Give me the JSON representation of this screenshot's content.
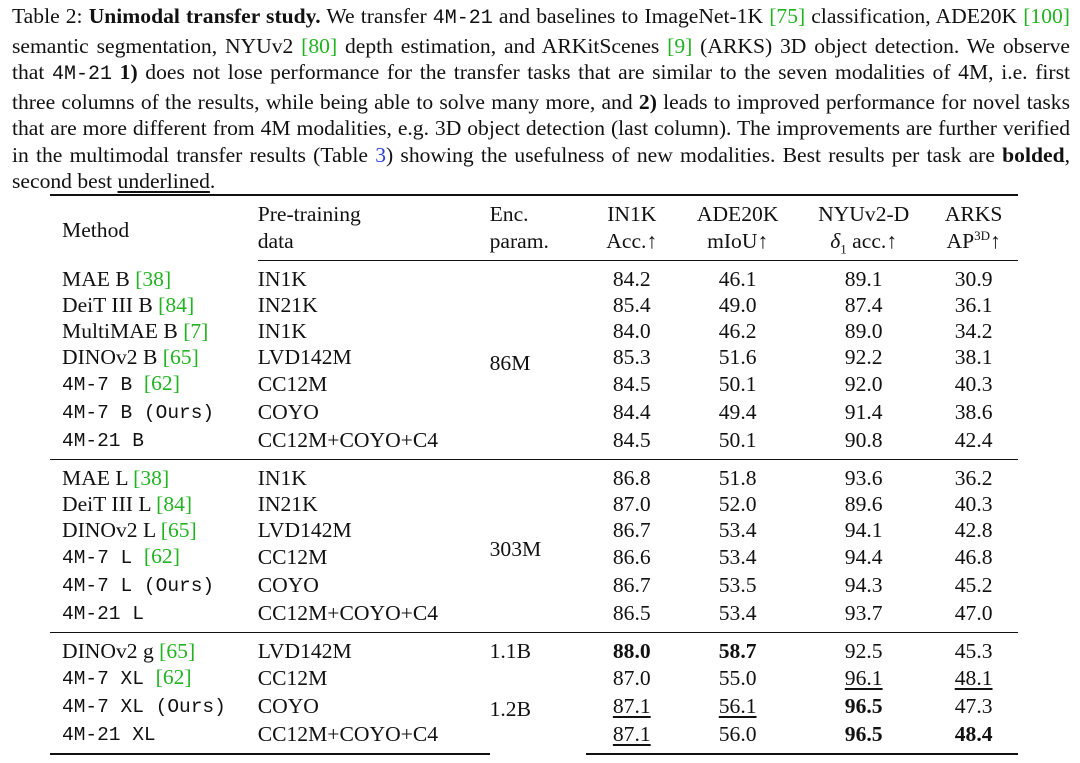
{
  "caption": {
    "label": "Table 2:",
    "title": "Unimodal transfer study.",
    "t1": " We transfer ",
    "model_a": "4M-21",
    "t2": " and baselines to ImageNet-1K ",
    "ref_75": "[75]",
    "t3": " classification, ADE20K ",
    "ref_100": "[100]",
    "t4": " semantic segmentation, NYUv2 ",
    "ref_80": "[80]",
    "t5": " depth estimation, and ARKitScenes ",
    "ref_9": "[9]",
    "t6": " (ARKS) 3D object detection. We observe that ",
    "model_b": "4M-21",
    "t7": " ",
    "n1": "1)",
    "t8": " does not lose performance for the transfer tasks that are similar to the seven modalities of 4M, i.e. first three columns of the results, while being able to solve many more, and ",
    "n2": "2)",
    "t9": " leads to improved performance for novel tasks that are more different from 4M modalities, e.g. 3D object detection (last column). The improvements are further verified in the multimodal transfer results (Table ",
    "ref_t3": "3",
    "t10": ") showing the usefulness of new modalities. Best results per task are ",
    "bolded": "bolded",
    "t11": ", second best ",
    "underlined": "underlined",
    "t12": "."
  },
  "header": {
    "method": "Method",
    "data_1": "Pre-training",
    "data_2": "data",
    "enc_1": "Enc.",
    "enc_2": "param.",
    "in1k_1": "IN1K",
    "in1k_2": "Acc.↑",
    "ade_1": "ADE20K",
    "ade_2": "mIoU↑",
    "nyu_1": "NYUv2-D",
    "nyu_2a": "δ",
    "nyu_2sub": "1",
    "nyu_2b": " acc.↑",
    "arks_1": "ARKS",
    "arks_2a": "AP",
    "arks_2sup": "3D",
    "arks_2b": "↑"
  },
  "groups": [
    {
      "enc": "86M",
      "rows": [
        {
          "name": "MAE B ",
          "cite": "[38]",
          "data": "IN1K",
          "in1k": "84.2",
          "ade": "46.1",
          "nyu": "89.1",
          "arks": "30.9"
        },
        {
          "name": "DeiT III B ",
          "cite": "[84]",
          "data": "IN21K",
          "in1k": "85.4",
          "ade": "49.0",
          "nyu": "87.4",
          "arks": "36.1"
        },
        {
          "name": "MultiMAE B ",
          "cite": "[7]",
          "data": "IN1K",
          "in1k": "84.0",
          "ade": "46.2",
          "nyu": "89.0",
          "arks": "34.2"
        },
        {
          "name": "DINOv2 B ",
          "cite": "[65]",
          "data": "LVD142M",
          "in1k": "85.3",
          "ade": "51.6",
          "nyu": "92.2",
          "arks": "38.1"
        },
        {
          "name": "4M-7 B ",
          "cite": "[62]",
          "data": "CC12M",
          "in1k": "84.5",
          "ade": "50.1",
          "nyu": "92.0",
          "arks": "40.3"
        },
        {
          "name": "4M-7 B (Ours)",
          "cite": "",
          "data": "COYO",
          "in1k": "84.4",
          "ade": "49.4",
          "nyu": "91.4",
          "arks": "38.6"
        },
        {
          "name": "4M-21 B",
          "cite": "",
          "data": "CC12M+COYO+C4",
          "in1k": "84.5",
          "ade": "50.1",
          "nyu": "90.8",
          "arks": "42.4"
        }
      ]
    },
    {
      "enc": "303M",
      "rows": [
        {
          "name": "MAE L ",
          "cite": "[38]",
          "data": "IN1K",
          "in1k": "86.8",
          "ade": "51.8",
          "nyu": "93.6",
          "arks": "36.2"
        },
        {
          "name": "DeiT III L ",
          "cite": "[84]",
          "data": "IN21K",
          "in1k": "87.0",
          "ade": "52.0",
          "nyu": "89.6",
          "arks": "40.3"
        },
        {
          "name": "DINOv2 L ",
          "cite": "[65]",
          "data": "LVD142M",
          "in1k": "86.7",
          "ade": "53.4",
          "nyu": "94.1",
          "arks": "42.8"
        },
        {
          "name": "4M-7 L ",
          "cite": "[62]",
          "data": "CC12M",
          "in1k": "86.6",
          "ade": "53.4",
          "nyu": "94.4",
          "arks": "46.8"
        },
        {
          "name": "4M-7 L (Ours)",
          "cite": "",
          "data": "COYO",
          "in1k": "86.7",
          "ade": "53.5",
          "nyu": "94.3",
          "arks": "45.2"
        },
        {
          "name": "4M-21 L",
          "cite": "",
          "data": "CC12M+COYO+C4",
          "in1k": "86.5",
          "ade": "53.4",
          "nyu": "93.7",
          "arks": "47.0"
        }
      ]
    },
    {
      "enc_a": "1.1B",
      "enc_b": "1.2B",
      "rows": [
        {
          "name": "DINOv2 g ",
          "cite": "[65]",
          "data": "LVD142M",
          "in1k": "88.0",
          "ade": "58.7",
          "nyu": "92.5",
          "arks": "45.3"
        },
        {
          "name": "4M-7 XL ",
          "cite": "[62]",
          "data": "CC12M",
          "in1k": "87.0",
          "ade": "55.0",
          "nyu": "96.1",
          "arks": "48.1"
        },
        {
          "name": "4M-7 XL (Ours)",
          "cite": "",
          "data": "COYO",
          "in1k": "87.1",
          "ade": "56.1",
          "nyu": "96.5",
          "arks": "47.3"
        },
        {
          "name": "4M-21 XL",
          "cite": "",
          "data": "CC12M+COYO+C4",
          "in1k": "87.1",
          "ade": "56.0",
          "nyu": "96.5",
          "arks": "48.4"
        }
      ]
    }
  ]
}
